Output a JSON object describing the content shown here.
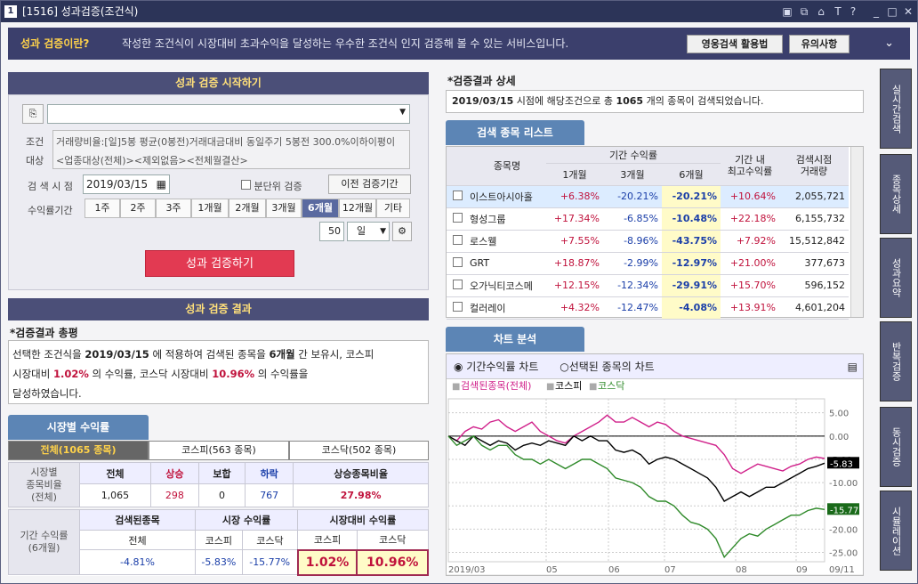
{
  "window": {
    "number": "1",
    "title": "[1516] 성과검증(조건식)",
    "icons": [
      "layout-icon",
      "copy-icon",
      "lock-icon",
      "font-icon",
      "help-icon",
      "minimize-icon",
      "maximize-icon",
      "close-icon"
    ]
  },
  "banner": {
    "question": "성과 검증이란?",
    "desc": "작성한 조건식이 시장대비 초과수익을 달성하는 우수한 조건식 인지 검증해 볼 수 있는 서비스입니다.",
    "btn1": "영웅검색 활용법",
    "btn2": "유의사항"
  },
  "start": {
    "header": "성과 검증 시작하기",
    "cond_label1": "조건",
    "cond_label2": "대상",
    "cond_text1": "거래량비율:[일]5봉 평균(0봉전)거래대금대비 동일주기 5봉전 300.0%이하이평이",
    "cond_text2": "<업종대상(전체)><제외없음><전체월결산>",
    "date_label": "검 색 시 점",
    "date": "2019/03/15",
    "minute_label": "분단위 검증",
    "prev_btn": "이전 검증기간",
    "period_label": "수익률기간",
    "periods": [
      "1주",
      "2주",
      "3주",
      "1개월",
      "2개월",
      "3개월",
      "6개월",
      "12개월",
      "기타"
    ],
    "days": "50",
    "day_unit": "일",
    "run_btn": "성과 검증하기"
  },
  "result": {
    "header": "성과 검증 결과",
    "summary_title": "*검증결과 총평",
    "summary_parts": [
      "선택한 조건식을 ",
      "2019/03/15",
      " 에 적용하여 검색된 종목을 ",
      "6개월",
      " 간 보유시, 코스피",
      "시장대비 ",
      "1.02%",
      " 의 수익률, 코스닥 시장대비 ",
      "10.96%",
      " 의 수익률을",
      "달성하였습니다."
    ]
  },
  "market": {
    "tab_label": "시장별 수익률",
    "subtabs": [
      "전체(1065 종목)",
      "코스피(563 종목)",
      "코스닥(502 종목)"
    ],
    "ratio_label": [
      "시장별",
      "종목비율",
      "(전체)"
    ],
    "ratio_heads": [
      "전체",
      "상승",
      "보합",
      "하락",
      "상승종목비율"
    ],
    "ratio_vals": [
      "1,065",
      "298",
      "0",
      "767",
      "27.98%"
    ],
    "ret_label": [
      "기간 수익률",
      "(6개월)"
    ],
    "ret_heads": [
      "검색된종목",
      "시장 수익률",
      "시장대비 수익률"
    ],
    "ret_sub": [
      "전체",
      "코스피",
      "코스닥",
      "코스피",
      "코스닥"
    ],
    "ret_vals": [
      "-4.81%",
      "-5.83%",
      "-15.77%",
      "1.02%",
      "10.96%"
    ]
  },
  "detail": {
    "title": "*검증결과 상세",
    "line_date": "2019/03/15",
    "line_mid": " 시점에 해당조건으로 총 ",
    "line_count": "1065",
    "line_end": " 개의 종목이 검색되었습니다."
  },
  "stocklist": {
    "tab": "검색 종목 리스트",
    "head_name": "종목명",
    "head_period": "기간 수익률",
    "sub": [
      "1개월",
      "3개월",
      "6개월"
    ],
    "head_max": [
      "기간 내",
      "최고수익률"
    ],
    "head_vol": [
      "검색시점",
      "거래량"
    ],
    "rows": [
      [
        "이스트아시아홀",
        "+6.38%",
        "-20.21%",
        "-20.21%",
        "+10.64%",
        "2,055,721"
      ],
      [
        "형성그룹",
        "+17.34%",
        "-6.85%",
        "-10.48%",
        "+22.18%",
        "6,155,732"
      ],
      [
        "로스웰",
        "+7.55%",
        "-8.96%",
        "-43.75%",
        "+7.92%",
        "15,512,842"
      ],
      [
        "GRT",
        "+18.87%",
        "-2.99%",
        "-12.97%",
        "+21.00%",
        "377,673"
      ],
      [
        "오가닉티코스메",
        "+12.15%",
        "-12.34%",
        "-29.91%",
        "+15.70%",
        "596,152"
      ],
      [
        "컬러레이",
        "+4.32%",
        "-12.47%",
        "-4.08%",
        "+13.91%",
        "4,601,204"
      ]
    ]
  },
  "chart": {
    "tab": "차트 분석",
    "radio1": "기간수익률 차트",
    "radio2": "선택된 종목의 차트",
    "legend": [
      "검색된종목(전체)",
      "코스피",
      "코스닥"
    ],
    "colors": {
      "stocks": "#d0208a",
      "kospi": "#000000",
      "kosdaq": "#2f8a2a"
    },
    "xlabels": [
      "2019/03",
      "05",
      "06",
      "07",
      "08",
      "09",
      "09/11"
    ],
    "ylabels": [
      "5.00",
      "0.00",
      "-5.00",
      "-10.00",
      "-15.00",
      "-20.00",
      "-25.00"
    ],
    "end_kospi": "-5.83",
    "end_kosdaq": "-15.77"
  },
  "chart_data": {
    "type": "line",
    "ylim": [
      -27,
      8
    ],
    "series": [
      {
        "name": "검색된종목(전체)",
        "values": [
          0,
          -1,
          1,
          2,
          1.5,
          3,
          3.5,
          2,
          1,
          2,
          3,
          1,
          0,
          -1,
          -1.5,
          0,
          1,
          2,
          3,
          4.5,
          3,
          3,
          4,
          3,
          2,
          3,
          2.5,
          1,
          0,
          -0.5,
          -1,
          -1.5,
          -2,
          -4,
          -7,
          -8,
          -7,
          -6,
          -6.5,
          -7,
          -7.5,
          -6.5,
          -6,
          -5,
          -4.5,
          -4.81
        ]
      },
      {
        "name": "코스피",
        "values": [
          0,
          -1,
          -2,
          0,
          -1,
          -2,
          -1,
          -1.5,
          -3,
          -2,
          -1.5,
          -2,
          -1,
          -1.5,
          -2,
          0,
          -1,
          0,
          -1,
          -1,
          -3,
          -3.5,
          -3,
          -4,
          -6,
          -5,
          -4.5,
          -5,
          -6,
          -7,
          -8,
          -9,
          -11,
          -14,
          -13,
          -12,
          -13,
          -12,
          -11,
          -11,
          -10,
          -9,
          -8,
          -7,
          -6.5,
          -5.83
        ]
      },
      {
        "name": "코스닥",
        "values": [
          0,
          -2,
          -1,
          0,
          -2,
          -3,
          -2,
          -2,
          -4,
          -5,
          -5,
          -6,
          -5,
          -6,
          -7,
          -6,
          -5,
          -5,
          -6,
          -7,
          -9,
          -9.5,
          -10,
          -11,
          -13,
          -14,
          -14,
          -15,
          -17,
          -18.5,
          -19,
          -20,
          -22,
          -26,
          -24,
          -22,
          -21,
          -21.5,
          -20,
          -19,
          -18,
          -17,
          -17,
          -16,
          -15.5,
          -15.77
        ]
      }
    ]
  },
  "sidebar": [
    "실시간검색",
    "종목상세",
    "성과요약",
    "반복검증",
    "동시검증",
    "시뮬레이션"
  ]
}
